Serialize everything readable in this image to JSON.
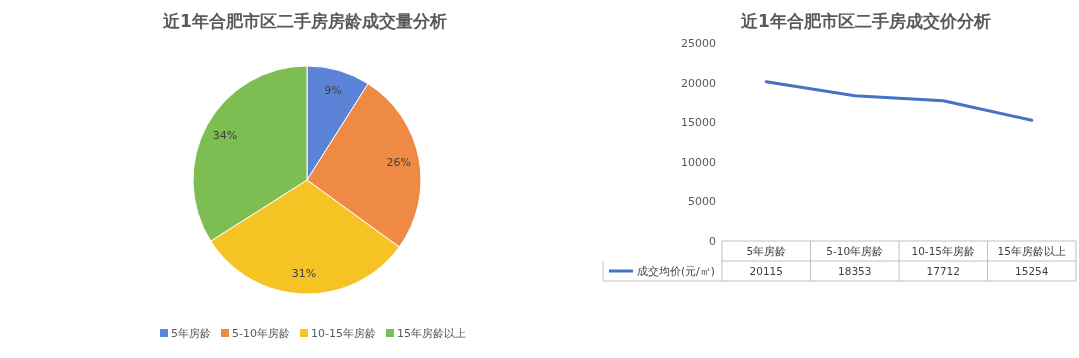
{
  "chart_data": [
    {
      "type": "pie",
      "title": "近1年合肥市区二手房房龄成交量分析",
      "categories": [
        "5年房龄",
        "5-10年房龄",
        "10-15年房龄",
        "15年房龄以上"
      ],
      "values": [
        9,
        26,
        31,
        34
      ],
      "colors": [
        "#5b84d9",
        "#ee8a43",
        "#f6c325",
        "#7dbd52"
      ],
      "value_labels": [
        "9%",
        "26%",
        "31%",
        "34%"
      ],
      "legend": "bottom"
    },
    {
      "type": "line",
      "title": "近1年合肥市区二手房成交价分析",
      "categories": [
        "5年房龄",
        "5-10年房龄",
        "10-15年房龄",
        "15年房龄以上"
      ],
      "series": [
        {
          "name": "成交均价(元/㎡)",
          "color": "#4472c4",
          "values": [
            20115,
            18353,
            17712,
            15254
          ]
        }
      ],
      "ylim": [
        0,
        25000
      ],
      "yticks": [
        0,
        5000,
        10000,
        15000,
        20000,
        25000
      ],
      "data_labels": true,
      "legend": "bottom",
      "grid": false
    }
  ]
}
